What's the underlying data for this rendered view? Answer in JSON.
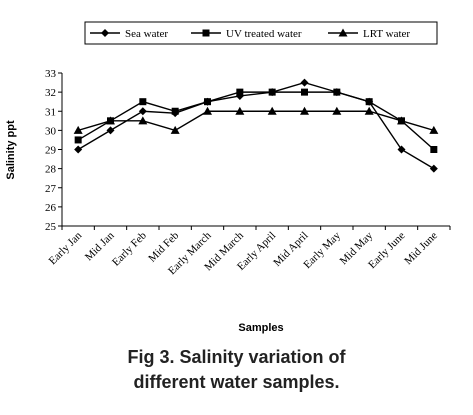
{
  "chart_data": {
    "type": "line",
    "categories": [
      "Early Jan",
      "Mid Jan",
      "Early Feb",
      "Mid Feb",
      "Early March",
      "Mid March",
      "Early April",
      "Mid April",
      "Early May",
      "Mid May",
      "Early June",
      "Mid June"
    ],
    "series": [
      {
        "name": "Sea water",
        "marker": "diamond",
        "values": [
          29,
          30,
          31,
          30.9,
          31.5,
          31.8,
          32,
          32.5,
          32,
          31.5,
          29,
          28
        ]
      },
      {
        "name": "UV treated water",
        "marker": "square",
        "values": [
          29.5,
          30.5,
          31.5,
          31,
          31.5,
          32,
          32,
          32,
          32,
          31.5,
          30.5,
          29
        ]
      },
      {
        "name": "LRT water",
        "marker": "triangle",
        "values": [
          30,
          30.5,
          30.5,
          30,
          31,
          31,
          31,
          31,
          31,
          31,
          30.5,
          30
        ]
      }
    ],
    "title": "",
    "xlabel": "Samples",
    "ylabel": "Salinity ppt",
    "ylim": [
      25,
      33
    ],
    "yticks": [
      25,
      26,
      27,
      28,
      29,
      30,
      31,
      32,
      33
    ],
    "grid": false,
    "legend": "top"
  },
  "caption": {
    "line1": "Fig 3. Salinity variation of",
    "line2": "different water samples."
  }
}
